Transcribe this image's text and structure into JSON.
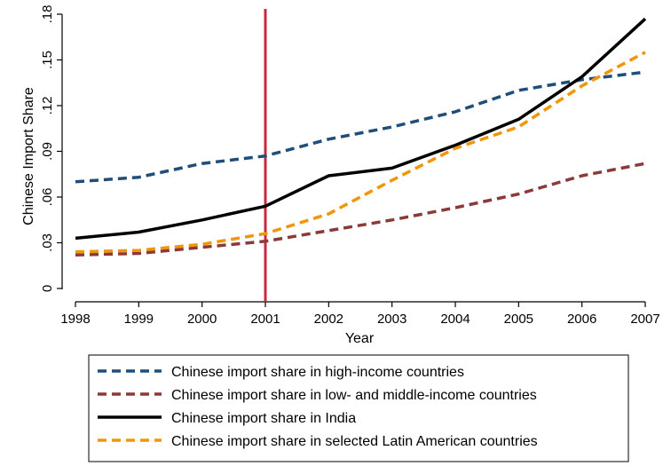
{
  "chart_data": {
    "type": "line",
    "title": "",
    "xlabel": "Year",
    "ylabel": "Chinese Import Share",
    "x": [
      1998,
      1999,
      2000,
      2001,
      2002,
      2003,
      2004,
      2005,
      2006,
      2007
    ],
    "xticks": [
      "1998",
      "1999",
      "2000",
      "2001",
      "2002",
      "2003",
      "2004",
      "2005",
      "2006",
      "2007"
    ],
    "yticks": [
      "0",
      ".03",
      ".06",
      ".09",
      ".12",
      ".15",
      ".18"
    ],
    "ytick_values": [
      0,
      0.03,
      0.06,
      0.09,
      0.12,
      0.15,
      0.18
    ],
    "xlim": [
      1998,
      2007
    ],
    "ylim": [
      0,
      0.18
    ],
    "vline": {
      "x": 2001,
      "color": "#c8283c"
    },
    "grid": false,
    "legend_position": "bottom",
    "series": [
      {
        "name": "Chinese import share in high-income countries",
        "color": "#1f4e79",
        "style": "dashed",
        "values": [
          0.07,
          0.073,
          0.082,
          0.087,
          0.098,
          0.106,
          0.116,
          0.13,
          0.137,
          0.142
        ]
      },
      {
        "name": "Chinese import share in low- and middle-income countries",
        "color": "#8b3a3a",
        "style": "dashed",
        "values": [
          0.022,
          0.023,
          0.027,
          0.031,
          0.038,
          0.045,
          0.053,
          0.062,
          0.074,
          0.082
        ]
      },
      {
        "name": "Chinese import share in India",
        "color": "#000000",
        "style": "solid",
        "values": [
          0.033,
          0.037,
          0.045,
          0.054,
          0.074,
          0.079,
          0.094,
          0.111,
          0.139,
          0.177
        ]
      },
      {
        "name": "Chinese import share in selected Latin American countries",
        "color": "#f0960a",
        "style": "dashed",
        "values": [
          0.024,
          0.025,
          0.029,
          0.036,
          0.049,
          0.071,
          0.092,
          0.106,
          0.133,
          0.155
        ]
      }
    ]
  }
}
